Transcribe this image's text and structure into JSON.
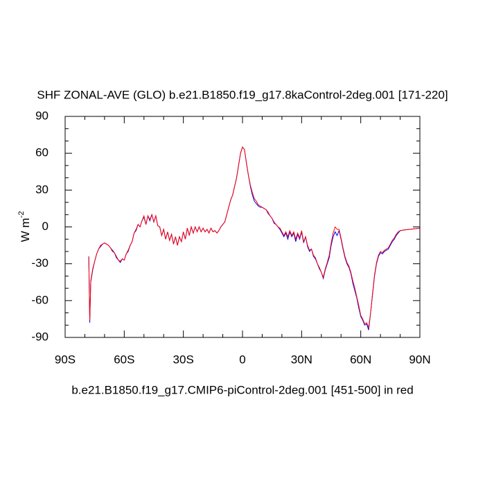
{
  "chart_data": {
    "type": "line",
    "title": "SHF ZONAL-AVE (GLO) b.e21.B1850.f19_g17.8kaControl-2deg.001 [171-220]",
    "y_label": {
      "text": "W m",
      "superscript": "-2"
    },
    "annotation": "b.e21.B1850.f19_g17.CMIP6-piControl-2deg.001 [451-500] in red",
    "xlim": [
      -90,
      90
    ],
    "ylim": [
      -90,
      90
    ],
    "xticks": [
      {
        "value": -90,
        "label": "90S"
      },
      {
        "value": -60,
        "label": "60S"
      },
      {
        "value": -30,
        "label": "30S"
      },
      0,
      {
        "value": 30,
        "label": "30N"
      },
      {
        "value": 60,
        "label": "60N"
      },
      {
        "value": 90,
        "label": "90N"
      }
    ],
    "yticks": [
      -90,
      -60,
      -30,
      0,
      30,
      60,
      90
    ],
    "xminorticks": [
      -80,
      -70,
      -50,
      -40,
      -20,
      -10,
      10,
      20,
      40,
      50,
      70,
      80
    ],
    "yminorticks": [
      -80,
      -70,
      -50,
      -40,
      -20,
      -10,
      10,
      20,
      40,
      50,
      70,
      80
    ],
    "x": [
      -78,
      -77.5,
      -77,
      -76,
      -75,
      -74,
      -73,
      -72,
      -71,
      -70,
      -69,
      -68,
      -67,
      -66,
      -65,
      -64,
      -63,
      -62,
      -61,
      -60,
      -59,
      -58,
      -57,
      -56,
      -55,
      -54,
      -53,
      -52,
      -51,
      -50,
      -49,
      -48,
      -47,
      -46,
      -45,
      -44,
      -43,
      -42,
      -41,
      -40,
      -39,
      -38,
      -37,
      -36,
      -35,
      -34,
      -33,
      -32,
      -31,
      -30,
      -29,
      -28,
      -27,
      -26,
      -25,
      -24,
      -23,
      -22,
      -21,
      -20,
      -19,
      -18,
      -17,
      -16,
      -15,
      -14,
      -13,
      -12,
      -11,
      -10,
      -9,
      -8,
      -7,
      -6,
      -5,
      -4,
      -3,
      -2,
      -1,
      0,
      1,
      2,
      3,
      4,
      5,
      6,
      7,
      8,
      9,
      10,
      11,
      12,
      13,
      14,
      15,
      16,
      17,
      18,
      19,
      20,
      21,
      22,
      23,
      24,
      25,
      26,
      27,
      28,
      29,
      30,
      31,
      32,
      33,
      34,
      35,
      36,
      37,
      38,
      39,
      40,
      41,
      42,
      43,
      44,
      45,
      46,
      47,
      48,
      49,
      50,
      51,
      52,
      53,
      54,
      55,
      56,
      57,
      58,
      59,
      60,
      61,
      62,
      63,
      64,
      65,
      66,
      67,
      68,
      69,
      70,
      71,
      72,
      73,
      74,
      75,
      76,
      77,
      78,
      79,
      80,
      82,
      85,
      90
    ],
    "series": [
      {
        "name": "8kaControl",
        "color": "#0000ff",
        "values": [
          -24,
          -78,
          -45,
          -35,
          -28,
          -22,
          -18,
          -16,
          -14,
          -13,
          -14,
          -15,
          -17,
          -19,
          -21,
          -25,
          -27,
          -29,
          -26,
          -27,
          -22,
          -20,
          -15,
          -12,
          -5,
          -3,
          2,
          0,
          5,
          8,
          2,
          9,
          5,
          10,
          4,
          9,
          1,
          0,
          -7,
          -2,
          -10,
          -4,
          -11,
          -6,
          -14,
          -8,
          -15,
          -8,
          -12,
          -4,
          -10,
          -1,
          -7,
          0,
          -5,
          0,
          -4,
          0,
          -4,
          -1,
          -4,
          -2,
          -5,
          -1,
          -4,
          -3,
          -5,
          -3,
          0,
          2,
          4,
          10,
          16,
          22,
          26,
          33,
          40,
          50,
          60,
          65,
          63,
          52,
          42,
          33,
          26,
          21,
          19,
          17,
          16,
          16,
          15,
          14,
          11,
          9,
          7,
          3,
          2,
          0,
          -2,
          -5,
          -8,
          -5,
          -10,
          -4,
          -8,
          -5,
          -12,
          -6,
          -10,
          -4,
          -13,
          -8,
          -16,
          -20,
          -18,
          -24,
          -26,
          -30,
          -34,
          -37,
          -42,
          -35,
          -30,
          -25,
          -15,
          -8,
          -4,
          -7,
          -3,
          -10,
          -18,
          -25,
          -30,
          -33,
          -38,
          -46,
          -52,
          -58,
          -66,
          -73,
          -76,
          -80,
          -79,
          -84,
          -70,
          -55,
          -40,
          -30,
          -24,
          -21,
          -22,
          -20,
          -19,
          -18,
          -15,
          -12,
          -10,
          -7,
          -5,
          -3,
          -2.5,
          -2,
          -1
        ]
      },
      {
        "name": "CMIP6-piControl",
        "color": "#ff0000",
        "values": [
          -24,
          -76,
          -44,
          -34,
          -28,
          -22,
          -18,
          -15,
          -14,
          -13,
          -14,
          -15,
          -17,
          -20,
          -21,
          -24,
          -27,
          -28,
          -26,
          -27,
          -22,
          -19,
          -15,
          -12,
          -5,
          -2,
          2,
          0,
          5,
          9,
          2,
          9,
          6,
          10,
          4,
          9,
          1,
          0,
          -7,
          -2,
          -10,
          -4,
          -11,
          -6,
          -14,
          -8,
          -15,
          -8,
          -12,
          -4,
          -10,
          -1,
          -7,
          0,
          -5,
          0,
          -4,
          0,
          -4,
          -1,
          -4,
          -2,
          -5,
          -1,
          -4,
          -3,
          -5,
          -3,
          0,
          2,
          4,
          10,
          16,
          22,
          26,
          33,
          40,
          50,
          60,
          65,
          63,
          52,
          42,
          34,
          28,
          23,
          21,
          18,
          17,
          16,
          15,
          14,
          12,
          9,
          7,
          4,
          2,
          0,
          -1,
          -4,
          -7,
          -4,
          -8,
          -3,
          -7,
          -4,
          -10,
          -5,
          -9,
          -3,
          -12,
          -8,
          -15,
          -19,
          -18,
          -23,
          -25,
          -30,
          -33,
          -37,
          -41,
          -34,
          -29,
          -23,
          -13,
          -5,
          0,
          -2,
          -2,
          -9,
          -17,
          -24,
          -29,
          -32,
          -37,
          -44,
          -50,
          -57,
          -64,
          -72,
          -75,
          -79,
          -78,
          -82,
          -70,
          -54,
          -39,
          -29,
          -23,
          -20,
          -21,
          -19,
          -18,
          -17,
          -14,
          -11,
          -9,
          -6,
          -4,
          -3,
          -2.5,
          -2,
          -1
        ]
      }
    ]
  }
}
